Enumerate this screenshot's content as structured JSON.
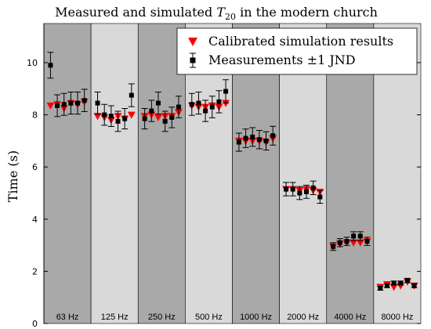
{
  "chart_data": {
    "type": "scatter",
    "title": {
      "prefix": "Measured and simulated ",
      "symbol": "T",
      "subscript": "20",
      "suffix": " in the modern church"
    },
    "xlabel": "",
    "ylabel": "Time (s)",
    "ylim": [
      0,
      11.5
    ],
    "yticks": [
      "0",
      "2",
      "4",
      "6",
      "8",
      "10"
    ],
    "grid": false,
    "legend_position": "top-right",
    "bands": [
      {
        "label": "63 Hz",
        "shade": "#a9a9a9"
      },
      {
        "label": "125 Hz",
        "shade": "#d9d9d9"
      },
      {
        "label": "250 Hz",
        "shade": "#a9a9a9"
      },
      {
        "label": "500 Hz",
        "shade": "#d9d9d9"
      },
      {
        "label": "1000 Hz",
        "shade": "#a9a9a9"
      },
      {
        "label": "2000 Hz",
        "shade": "#d9d9d9"
      },
      {
        "label": "4000 Hz",
        "shade": "#a9a9a9"
      },
      {
        "label": "8000 Hz",
        "shade": "#d9d9d9"
      }
    ],
    "series": [
      {
        "name": "Calibrated simulation results",
        "marker": "triangle-down",
        "color": "#ff0000",
        "values": [
          [
            8.35,
            8.4,
            8.25,
            8.45,
            8.4,
            8.5
          ],
          [
            7.95,
            7.9,
            7.8,
            7.95,
            7.85,
            8.0
          ],
          [
            7.95,
            8.0,
            7.9,
            7.95,
            7.95,
            8.1
          ],
          [
            8.35,
            8.3,
            8.3,
            8.35,
            8.3,
            8.45
          ],
          [
            7.0,
            7.0,
            7.0,
            7.0,
            6.95,
            7.1
          ],
          [
            5.15,
            5.15,
            5.1,
            5.15,
            5.1,
            5.05
          ],
          [
            2.95,
            3.05,
            3.1,
            3.1,
            3.1,
            3.15
          ],
          [
            1.4,
            1.5,
            1.4,
            1.45,
            1.6,
            1.45
          ]
        ]
      },
      {
        "name": "Measurements ±1 JND",
        "marker": "square",
        "color": "#000000",
        "jnd": 0.05,
        "values": [
          [
            9.9,
            8.35,
            8.4,
            8.45,
            8.45,
            8.55
          ],
          [
            8.45,
            8.0,
            7.95,
            7.75,
            7.85,
            8.75
          ],
          [
            7.85,
            8.15,
            8.45,
            7.75,
            7.9,
            8.3
          ],
          [
            8.4,
            8.45,
            8.15,
            8.3,
            8.5,
            8.9
          ],
          [
            6.95,
            7.1,
            7.15,
            7.05,
            7.0,
            7.2
          ],
          [
            5.15,
            5.15,
            5.0,
            5.05,
            5.2,
            4.85
          ],
          [
            2.95,
            3.1,
            3.15,
            3.35,
            3.35,
            3.15
          ],
          [
            1.35,
            1.45,
            1.55,
            1.55,
            1.65,
            1.45
          ]
        ]
      }
    ]
  }
}
